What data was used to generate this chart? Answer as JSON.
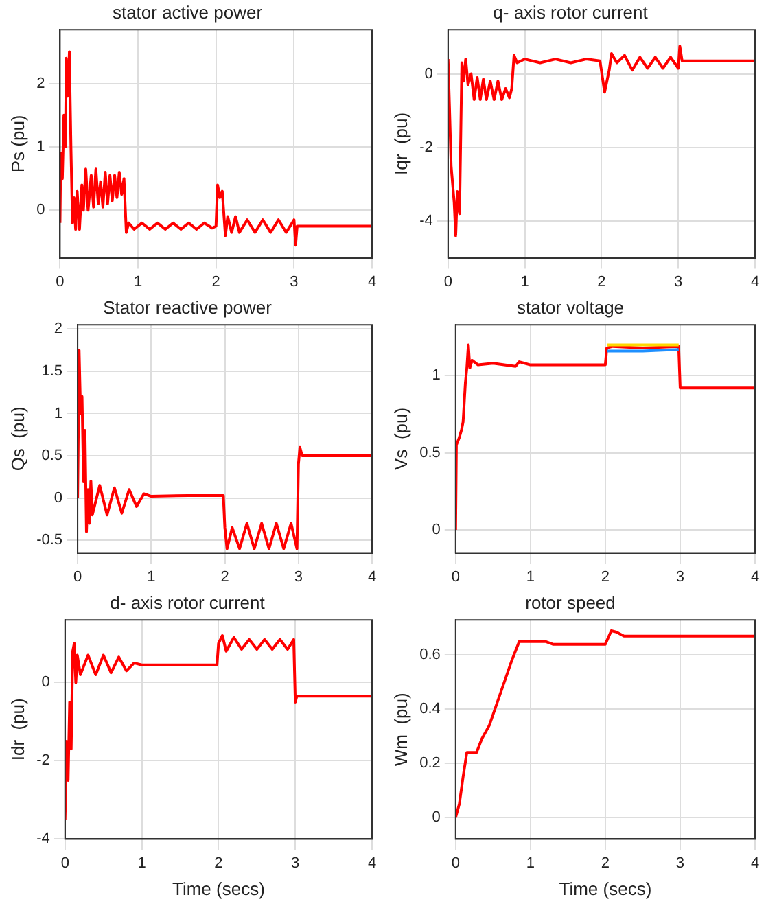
{
  "chart_data": [
    {
      "type": "line",
      "title": "stator active power",
      "ylabel": "Ps (pu)",
      "xlim": [
        0,
        4
      ],
      "xticks": [
        0,
        1,
        2,
        3,
        4
      ],
      "ylim": [
        -0.75,
        2.85
      ],
      "yticks": [
        0,
        1,
        2
      ],
      "grid": true,
      "marker": "none",
      "series": [
        {
          "color": "#ff0000",
          "x": [
            0,
            0.01,
            0.03,
            0.05,
            0.07,
            0.08,
            0.1,
            0.12,
            0.14,
            0.16,
            0.18,
            0.2,
            0.22,
            0.25,
            0.28,
            0.3,
            0.33,
            0.36,
            0.4,
            0.43,
            0.46,
            0.49,
            0.52,
            0.55,
            0.58,
            0.61,
            0.64,
            0.67,
            0.7,
            0.73,
            0.76,
            0.79,
            0.82,
            0.85,
            0.88,
            0.95,
            1.05,
            1.15,
            1.25,
            1.35,
            1.45,
            1.55,
            1.65,
            1.75,
            1.85,
            1.95,
            2.0,
            2.02,
            2.05,
            2.08,
            2.12,
            2.15,
            2.2,
            2.25,
            2.3,
            2.4,
            2.5,
            2.6,
            2.7,
            2.8,
            2.9,
            3.0,
            3.02,
            3.04,
            4
          ],
          "values": [
            -0.2,
            0.9,
            0.5,
            1.5,
            1.0,
            2.4,
            1.8,
            2.5,
            1.0,
            -0.2,
            0.2,
            -0.3,
            0.3,
            -0.3,
            0.4,
            0,
            0.65,
            0,
            0.55,
            0.05,
            0.65,
            0.1,
            0.45,
            0.05,
            0.6,
            0.1,
            0.55,
            0.15,
            0.55,
            0.2,
            0.6,
            0.25,
            0.5,
            -0.35,
            -0.2,
            -0.3,
            -0.2,
            -0.3,
            -0.2,
            -0.3,
            -0.2,
            -0.3,
            -0.2,
            -0.3,
            -0.2,
            -0.28,
            -0.25,
            0.4,
            0.2,
            0.3,
            -0.4,
            -0.1,
            -0.35,
            -0.1,
            -0.35,
            -0.15,
            -0.35,
            -0.15,
            -0.35,
            -0.15,
            -0.35,
            -0.15,
            -0.55,
            -0.25,
            -0.25
          ]
        }
      ]
    },
    {
      "type": "line",
      "title": "q- axis rotor current",
      "ylabel": "Iqr  (pu)",
      "xlim": [
        0,
        4
      ],
      "xticks": [
        0,
        1,
        2,
        3,
        4
      ],
      "ylim": [
        -5,
        1.2
      ],
      "yticks": [
        -4,
        -2,
        0
      ],
      "grid": true,
      "marker": "none",
      "series": [
        {
          "color": "#ff0000",
          "x": [
            0,
            0.02,
            0.04,
            0.06,
            0.08,
            0.1,
            0.12,
            0.15,
            0.18,
            0.2,
            0.23,
            0.26,
            0.3,
            0.34,
            0.38,
            0.42,
            0.46,
            0.5,
            0.55,
            0.6,
            0.65,
            0.7,
            0.75,
            0.8,
            0.83,
            0.86,
            0.9,
            1.0,
            1.2,
            1.4,
            1.6,
            1.8,
            1.98,
            2.04,
            2.1,
            2.13,
            2.2,
            2.3,
            2.4,
            2.5,
            2.6,
            2.7,
            2.8,
            2.9,
            3.0,
            3.02,
            3.05,
            4
          ],
          "values": [
            0.4,
            -1,
            -2.5,
            -3,
            -3.5,
            -4.4,
            -3.2,
            -3.8,
            0.3,
            -0.2,
            0.4,
            -0.3,
            0,
            -0.7,
            -0.1,
            -0.7,
            -0.15,
            -0.7,
            -0.2,
            -0.7,
            -0.2,
            -0.7,
            -0.4,
            -0.65,
            -0.4,
            0.5,
            0.3,
            0.4,
            0.3,
            0.4,
            0.3,
            0.4,
            0.35,
            -0.5,
            0.1,
            0.55,
            0.3,
            0.5,
            0.1,
            0.45,
            0.15,
            0.45,
            0.15,
            0.45,
            0.15,
            0.75,
            0.35,
            0.35
          ]
        }
      ]
    },
    {
      "type": "line",
      "title": "Stator reactive power",
      "ylabel": "Qs  (pu)",
      "xlim": [
        0,
        4
      ],
      "xticks": [
        0,
        1,
        2,
        3,
        4
      ],
      "ylim": [
        -0.65,
        2.05
      ],
      "yticks": [
        -0.5,
        0,
        0.5,
        1,
        1.5,
        2
      ],
      "grid": true,
      "marker": "none",
      "series": [
        {
          "color": "#ff0000",
          "x": [
            0,
            0.02,
            0.04,
            0.06,
            0.08,
            0.1,
            0.12,
            0.14,
            0.16,
            0.18,
            0.2,
            0.3,
            0.4,
            0.5,
            0.6,
            0.7,
            0.8,
            0.9,
            1.0,
            1.5,
            1.98,
            2.0,
            2.03,
            2.1,
            2.2,
            2.3,
            2.4,
            2.5,
            2.6,
            2.7,
            2.8,
            2.9,
            2.98,
            3.0,
            3.02,
            3.05,
            4
          ],
          "values": [
            0,
            1.75,
            1.0,
            1.2,
            0.2,
            0.8,
            -0.4,
            0.1,
            -0.3,
            0.2,
            -0.2,
            0.15,
            -0.2,
            0.12,
            -0.18,
            0.1,
            -0.1,
            0.05,
            0.02,
            0.03,
            0.03,
            -0.35,
            -0.6,
            -0.35,
            -0.6,
            -0.3,
            -0.6,
            -0.3,
            -0.6,
            -0.3,
            -0.6,
            -0.3,
            -0.6,
            0.4,
            0.6,
            0.5,
            0.5
          ]
        }
      ]
    },
    {
      "type": "line",
      "title": "stator voltage",
      "ylabel": "Vs  (pu)",
      "xlim": [
        0,
        4
      ],
      "xticks": [
        0,
        1,
        2,
        3,
        4
      ],
      "ylim": [
        -0.15,
        1.33
      ],
      "yticks": [
        0,
        0.5,
        1
      ],
      "grid": true,
      "marker": "none",
      "series": [
        {
          "color": "#1e90ff",
          "x": [
            2.02,
            2.5,
            2.98
          ],
          "values": [
            1.16,
            1.16,
            1.17
          ]
        },
        {
          "color": "#ffd700",
          "x": [
            2.02,
            2.5,
            2.98
          ],
          "values": [
            1.2,
            1.2,
            1.2
          ]
        },
        {
          "color": "#ff0000",
          "x": [
            0,
            0.01,
            0.05,
            0.08,
            0.1,
            0.13,
            0.15,
            0.17,
            0.19,
            0.22,
            0.3,
            0.5,
            0.8,
            0.85,
            1.0,
            2.0,
            2.02,
            2.1,
            2.5,
            2.98,
            3.0,
            4
          ],
          "values": [
            0,
            0.55,
            0.6,
            0.65,
            0.7,
            0.95,
            1.05,
            1.2,
            1.05,
            1.1,
            1.07,
            1.08,
            1.06,
            1.09,
            1.07,
            1.07,
            1.18,
            1.19,
            1.18,
            1.19,
            0.92,
            0.92
          ]
        }
      ]
    },
    {
      "type": "line",
      "title": "d- axis rotor current",
      "xlabel": "Time (secs)",
      "ylabel": "Idr  (pu)",
      "xlim": [
        0,
        4
      ],
      "xticks": [
        0,
        1,
        2,
        3,
        4
      ],
      "ylim": [
        -4,
        1.6
      ],
      "yticks": [
        -4,
        -2,
        0
      ],
      "grid": true,
      "marker": "none",
      "series": [
        {
          "color": "#ff0000",
          "x": [
            0,
            0.02,
            0.04,
            0.06,
            0.08,
            0.1,
            0.12,
            0.14,
            0.16,
            0.2,
            0.3,
            0.4,
            0.5,
            0.6,
            0.7,
            0.8,
            0.9,
            1.0,
            1.5,
            1.98,
            2.0,
            2.05,
            2.1,
            2.2,
            2.3,
            2.4,
            2.5,
            2.6,
            2.7,
            2.8,
            2.9,
            2.98,
            3.0,
            3.02,
            4
          ],
          "values": [
            -3.5,
            -1.5,
            -2.5,
            -0.5,
            -1.7,
            0.8,
            1.0,
            0,
            0.7,
            0.2,
            0.7,
            0.2,
            0.7,
            0.25,
            0.65,
            0.3,
            0.5,
            0.45,
            0.45,
            0.45,
            1.0,
            1.2,
            0.8,
            1.15,
            0.85,
            1.1,
            0.85,
            1.1,
            0.85,
            1.1,
            0.85,
            1.1,
            -0.5,
            -0.35,
            -0.35
          ]
        }
      ]
    },
    {
      "type": "line",
      "title": "rotor speed",
      "xlabel": "Time (secs)",
      "ylabel": "Wm  (pu)",
      "xlim": [
        0,
        4
      ],
      "xticks": [
        0,
        1,
        2,
        3,
        4
      ],
      "ylim": [
        -0.08,
        0.73
      ],
      "yticks": [
        0,
        0.2,
        0.4,
        0.6
      ],
      "grid": true,
      "marker": "none",
      "series": [
        {
          "color": "#ff0000",
          "x": [
            0,
            0.05,
            0.1,
            0.15,
            0.28,
            0.35,
            0.45,
            0.55,
            0.65,
            0.75,
            0.85,
            1.2,
            1.3,
            2.0,
            2.08,
            2.15,
            2.25,
            4
          ],
          "values": [
            0,
            0.05,
            0.15,
            0.24,
            0.24,
            0.29,
            0.34,
            0.42,
            0.5,
            0.58,
            0.65,
            0.65,
            0.64,
            0.64,
            0.69,
            0.685,
            0.67,
            0.67
          ]
        }
      ]
    }
  ]
}
